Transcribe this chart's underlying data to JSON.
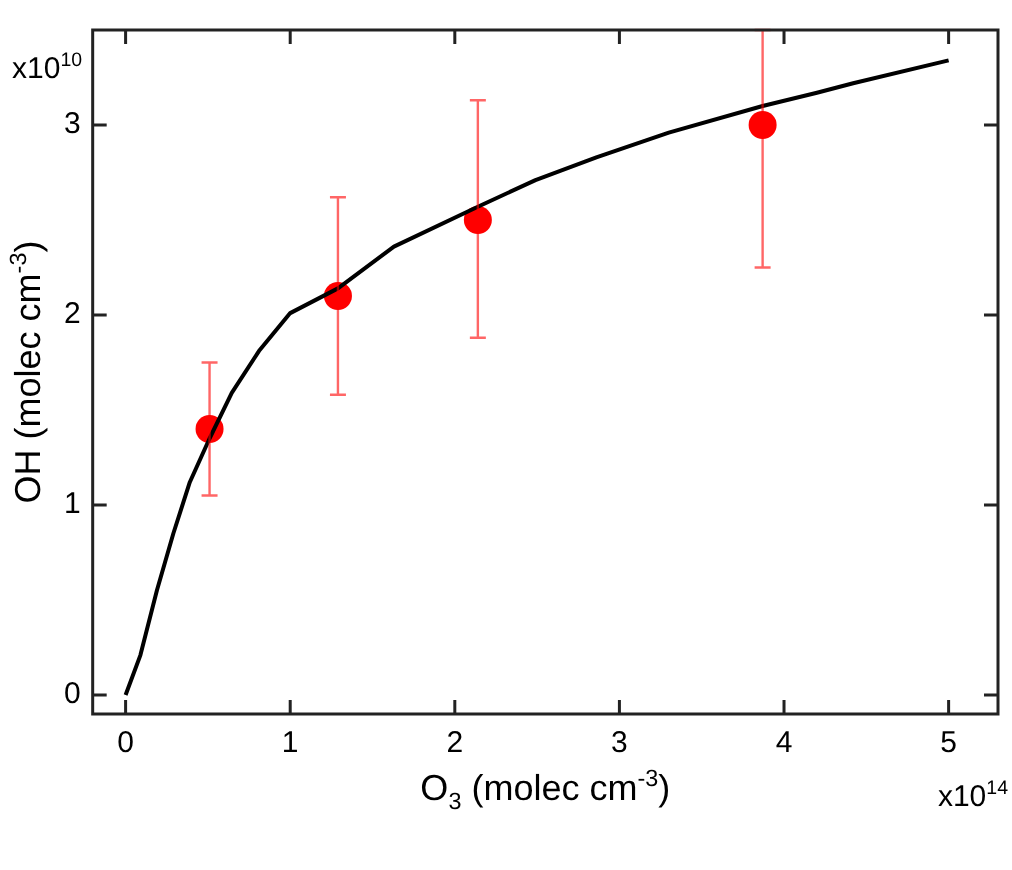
{
  "chart_data": {
    "type": "scatter",
    "xlabel": "O$_{3}$ (molec cm$^{-3}$)",
    "ylabel": "OH (molec cm$^{-3}$)",
    "annotations": [
      "x10$^{10}$",
      "x10$^{14}$"
    ],
    "xlim": [
      -0.2,
      5.3
    ],
    "ylim": [
      -0.1,
      3.5
    ],
    "xticks": [
      0,
      1,
      2,
      3,
      4,
      5
    ],
    "yticks": [
      0,
      1,
      2,
      3
    ],
    "grid": false,
    "legend": false,
    "series": [
      {
        "type": "line",
        "color": "#000000",
        "marker": "none",
        "line_style": "solid",
        "x": [
          0,
          0.09,
          0.19,
          0.29,
          0.39,
          0.51,
          0.645,
          0.81,
          1.0,
          1.29,
          1.63,
          2.14,
          2.49,
          2.86,
          3.3,
          3.87,
          4.2,
          4.42,
          5.0
        ],
        "values": [
          0,
          0.21,
          0.55,
          0.85,
          1.12,
          1.35,
          1.59,
          1.81,
          2.01,
          2.14,
          2.36,
          2.57,
          2.71,
          2.83,
          2.96,
          3.1,
          3.17,
          3.22,
          3.34
        ]
      },
      {
        "type": "scatter",
        "color": "#ff0000",
        "marker": "circle",
        "x": [
          0.51,
          1.29,
          2.14,
          3.87
        ],
        "values": [
          1.4,
          2.1,
          2.5,
          3.0
        ],
        "errors": [
          [
            1.05,
            1.75
          ],
          [
            1.58,
            2.62
          ],
          [
            1.88,
            3.13
          ],
          [
            2.25,
            3.5
          ]
        ]
      }
    ]
  }
}
